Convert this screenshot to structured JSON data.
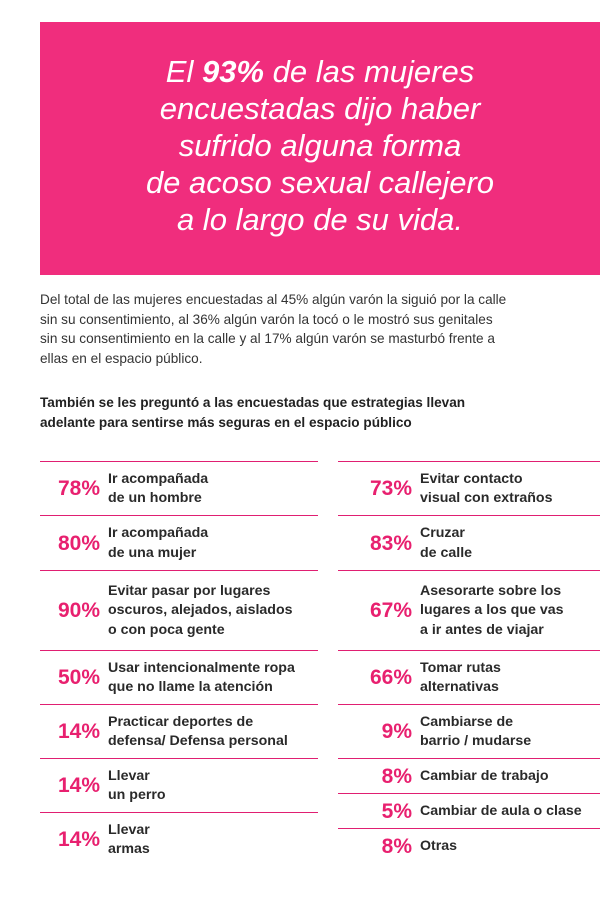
{
  "banner": {
    "lines": [
      {
        "pre": "El ",
        "hl": "93%",
        "post": " de las mujeres"
      },
      {
        "pre": "encuestadas dijo haber",
        "hl": "",
        "post": ""
      },
      {
        "pre": "sufrido alguna forma",
        "hl": "",
        "post": ""
      },
      {
        "pre": "de acoso sexual callejero",
        "hl": "",
        "post": ""
      },
      {
        "pre": "a lo largo de su vida.",
        "hl": "",
        "post": ""
      }
    ]
  },
  "intro": {
    "lines": [
      "Del total de las mujeres encuestadas al 45% algún varón la siguió por la calle",
      "sin su consentimiento, al 36% algún varón la tocó o le mostró sus genitales",
      "sin su consentimiento en la calle y al 17% algún varón se masturbó frente a",
      "ellas en el espacio público."
    ]
  },
  "question": {
    "lines": [
      "También se les preguntó a las encuestadas que estrategias llevan",
      "adelante para sentirse más seguras en el espacio público"
    ]
  },
  "strategies_left": [
    {
      "percent": "78%",
      "label": [
        "Ir acompañada",
        "de un hombre"
      ]
    },
    {
      "percent": "80%",
      "label": [
        "Ir acompañada",
        "de una mujer"
      ]
    },
    {
      "percent": "90%",
      "label": [
        "Evitar pasar por lugares",
        "oscuros, alejados, aislados",
        "o con poca gente"
      ]
    },
    {
      "percent": "50%",
      "label": [
        "Usar intencionalmente ropa",
        "que no llame la atención"
      ]
    },
    {
      "percent": "14%",
      "label": [
        "Practicar deportes de",
        "defensa/ Defensa personal"
      ]
    },
    {
      "percent": "14%",
      "label": [
        "Llevar",
        "un perro"
      ]
    },
    {
      "percent": "14%",
      "label": [
        "Llevar",
        "armas"
      ]
    }
  ],
  "strategies_right": [
    {
      "percent": "73%",
      "label": [
        "Evitar contacto",
        "visual con extraños"
      ]
    },
    {
      "percent": "83%",
      "label": [
        "Cruzar",
        "de calle"
      ]
    },
    {
      "percent": "67%",
      "label": [
        "Asesorarte sobre los",
        "lugares a los que vas",
        "a ir antes de viajar"
      ]
    },
    {
      "percent": "66%",
      "label": [
        "Tomar rutas",
        "alternativas"
      ]
    },
    {
      "percent": "9%",
      "label": [
        "Cambiarse de",
        "barrio / mudarse"
      ]
    },
    {
      "percent": "8%",
      "label": [
        "Cambiar de trabajo"
      ]
    },
    {
      "percent": "5%",
      "label": [
        "Cambiar de aula o clase"
      ]
    },
    {
      "percent": "8%",
      "label": [
        "Otras"
      ]
    }
  ],
  "colors": {
    "accent": "#f02d7d",
    "percent": "#e8206f"
  }
}
